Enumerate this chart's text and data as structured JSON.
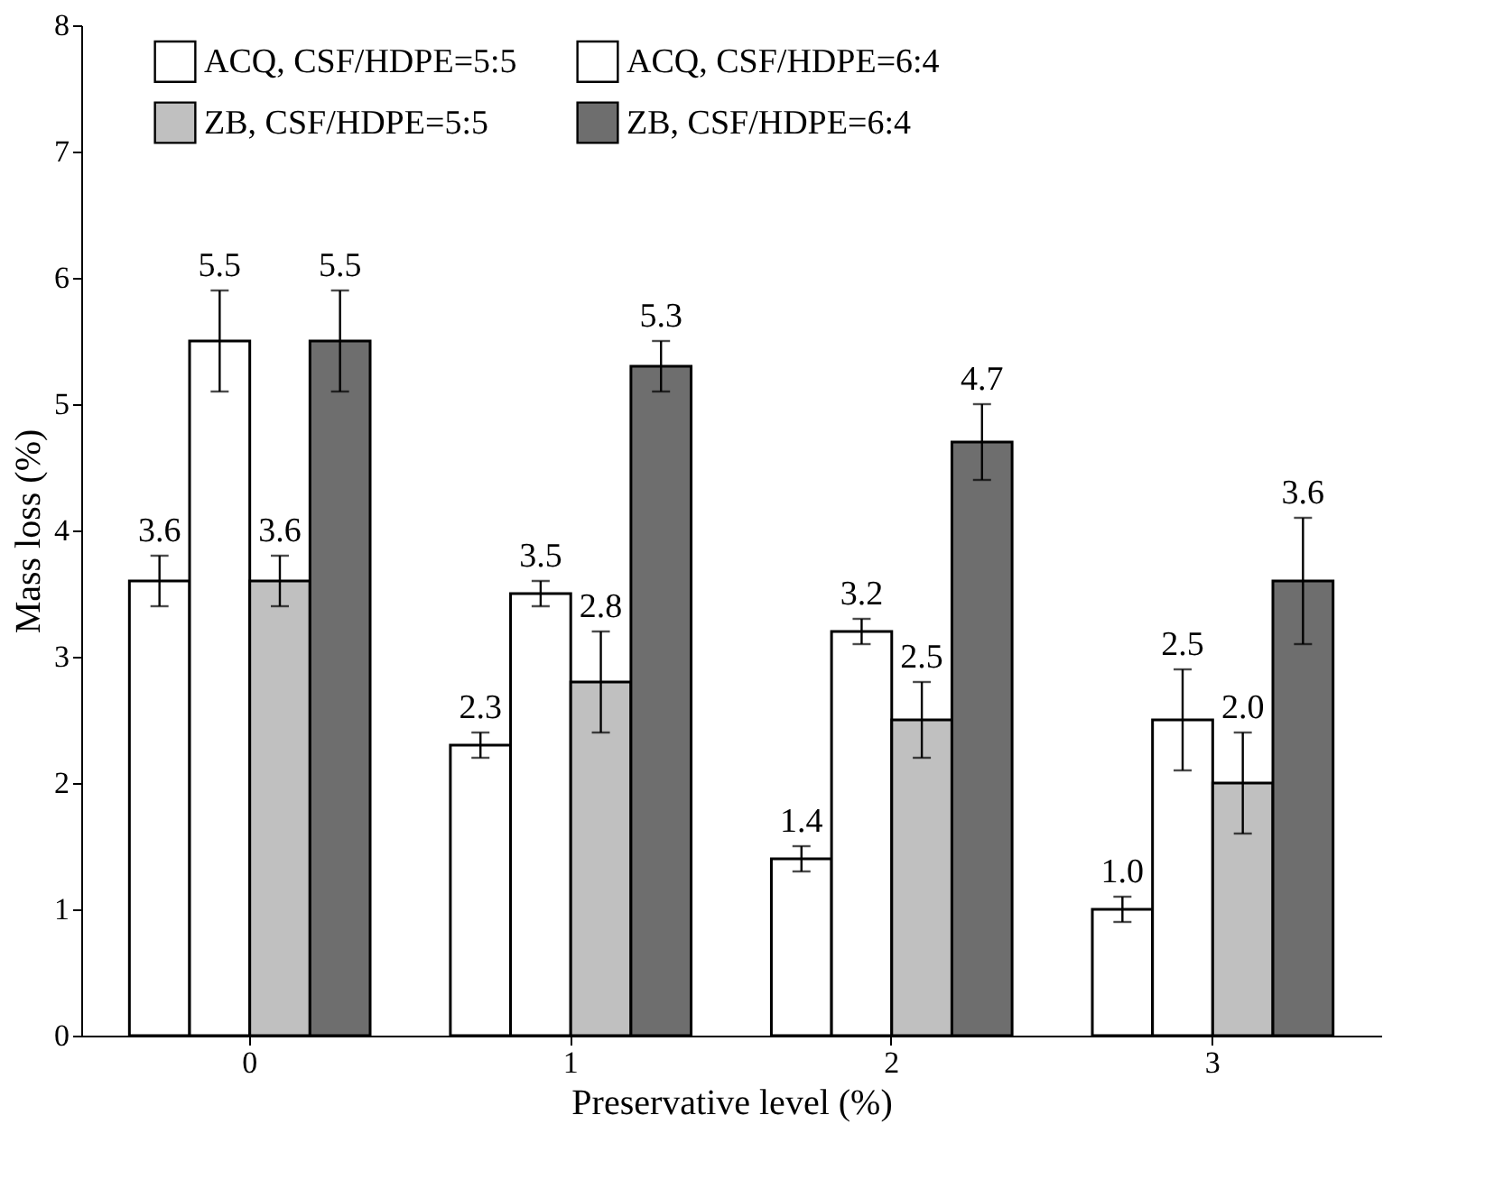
{
  "chart_data": {
    "type": "bar",
    "xlabel": "Preservative level (%)",
    "ylabel": "Mass loss (%)",
    "categories": [
      "0",
      "1",
      "2",
      "3"
    ],
    "series": [
      {
        "name": "ACQ, CSF/HDPE=5:5",
        "color": "#ffffff",
        "values": [
          3.6,
          2.3,
          1.4,
          1.0
        ],
        "value_labels": [
          "3.6",
          "2.3",
          "1.4",
          "1.0"
        ],
        "errors": [
          0.2,
          0.1,
          0.1,
          0.1
        ]
      },
      {
        "name": "ACQ, CSF/HDPE=6:4",
        "color": "#ffffff",
        "values": [
          5.5,
          3.5,
          3.2,
          2.5
        ],
        "value_labels": [
          "5.5",
          "3.5",
          "3.2",
          "2.5"
        ],
        "errors": [
          0.4,
          0.1,
          0.1,
          0.4
        ]
      },
      {
        "name": "ZB, CSF/HDPE=5:5",
        "color": "#c0c0c0",
        "values": [
          3.6,
          2.8,
          2.5,
          2.0
        ],
        "value_labels": [
          "3.6",
          "2.8",
          "2.5",
          "2.0"
        ],
        "errors": [
          0.2,
          0.4,
          0.3,
          0.4
        ]
      },
      {
        "name": "ZB, CSF/HDPE=6:4",
        "color": "#6e6e6e",
        "values": [
          5.5,
          5.3,
          4.7,
          3.6
        ],
        "value_labels": [
          "5.5",
          "5.3",
          "4.7",
          "3.6"
        ],
        "errors": [
          0.4,
          0.2,
          0.3,
          0.5
        ]
      }
    ],
    "ylim": [
      0,
      8
    ],
    "yticks": [
      0,
      1,
      2,
      3,
      4,
      5,
      6,
      7,
      8
    ],
    "grid": false,
    "legend": "top"
  }
}
